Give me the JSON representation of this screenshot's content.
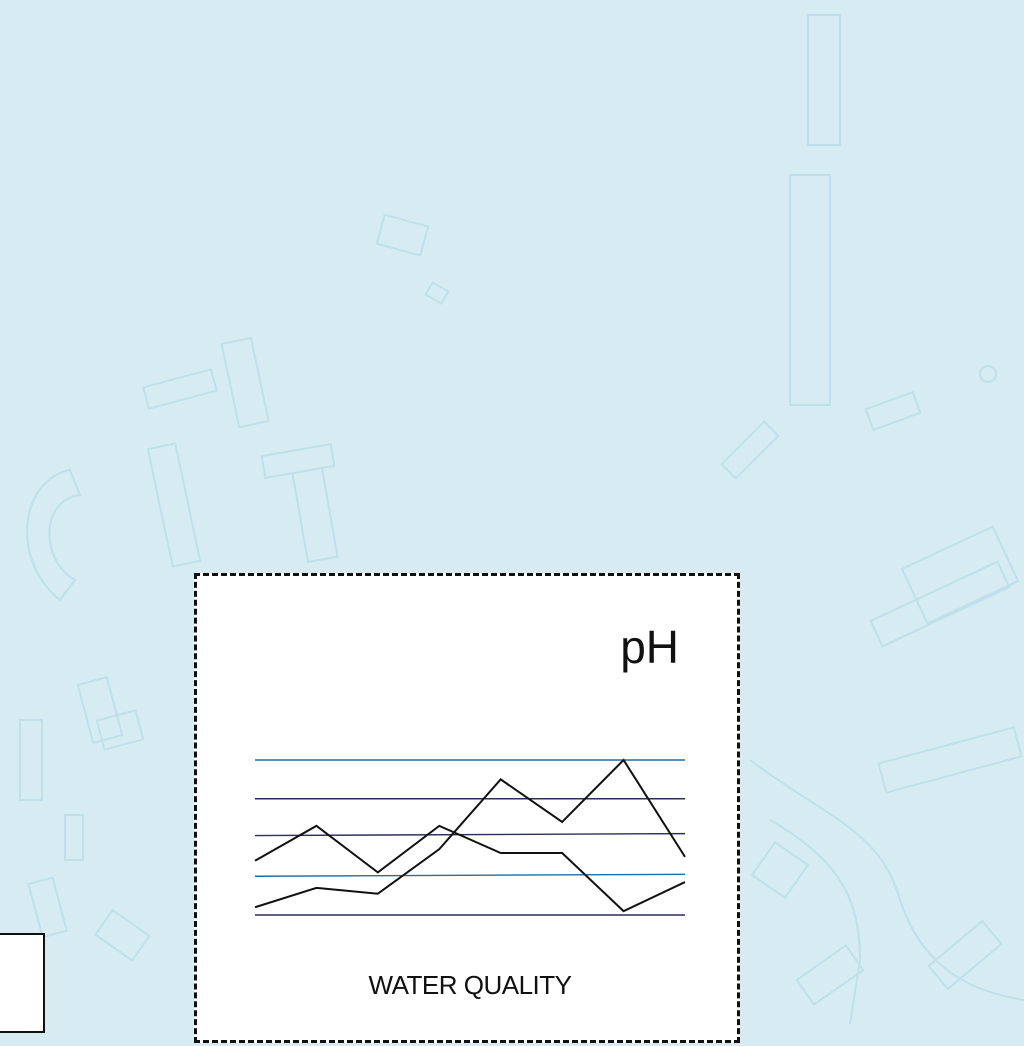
{
  "card": {
    "title": "pH",
    "caption": "WATER QUALITY"
  },
  "colors": {
    "background": "#d6ecf2",
    "map_outline": "#bfe0ea",
    "card_background": "#ffffff",
    "border": "#111111",
    "reference_line_blue": "#1f6fa8",
    "reference_line_navy": "#2b2f5a",
    "series": "#111111"
  },
  "chart_data": {
    "type": "line",
    "title": "",
    "xlabel": "",
    "ylabel": "",
    "x": [
      0,
      1,
      2,
      3,
      4,
      5,
      6,
      7
    ],
    "xlim": [
      0,
      7
    ],
    "ylim": [
      0,
      4
    ],
    "grid": true,
    "reference_lines": [
      {
        "value": 4.0,
        "color": "blue"
      },
      {
        "value": 3.0,
        "color": "navy"
      },
      {
        "value": 2.05,
        "color": "navy",
        "value_end": 2.1
      },
      {
        "value": 1.0,
        "color": "blue",
        "value_end": 1.05
      },
      {
        "value": 0.0,
        "color": "navy"
      }
    ],
    "series": [
      {
        "values": [
          1.4,
          2.3,
          1.1,
          2.3,
          1.6,
          1.6,
          0.1,
          0.85
        ]
      },
      {
        "values": [
          0.2,
          0.7,
          0.55,
          1.7,
          3.5,
          2.4,
          4.0,
          1.5
        ]
      }
    ]
  }
}
